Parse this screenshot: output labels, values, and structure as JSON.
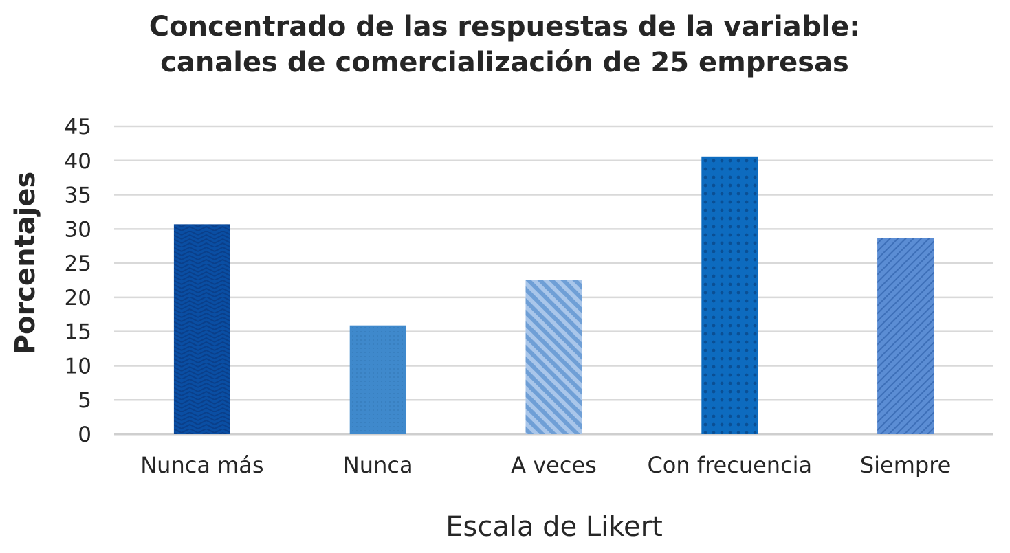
{
  "chart_data": {
    "type": "bar",
    "title": [
      "Concentrado de las respuestas de la variable:",
      "canales de comercialización de 25 empresas"
    ],
    "xlabel": "Escala de Likert",
    "ylabel": "Porcentajes",
    "categories": [
      "Nunca más",
      "Nunca",
      "A veces",
      "Con frecuencia",
      "Siempre"
    ],
    "values": [
      30.7,
      15.9,
      22.6,
      40.6,
      28.7
    ],
    "ylim": [
      0,
      45
    ],
    "yticks": [
      0,
      5,
      10,
      15,
      20,
      25,
      30,
      35,
      40,
      45
    ],
    "grid": true,
    "legend": "none",
    "bar_colors": [
      "#0a4ea3",
      "#3f89cc",
      "#8fb4e0",
      "#0d6bbf",
      "#5b8dd4"
    ],
    "bar_patterns": [
      "zigzag",
      "fine-dots",
      "diagonal-stripes",
      "dots",
      "fine-diagonal"
    ],
    "gridline_color": "#d9d9d9",
    "text_color": "#262626"
  }
}
